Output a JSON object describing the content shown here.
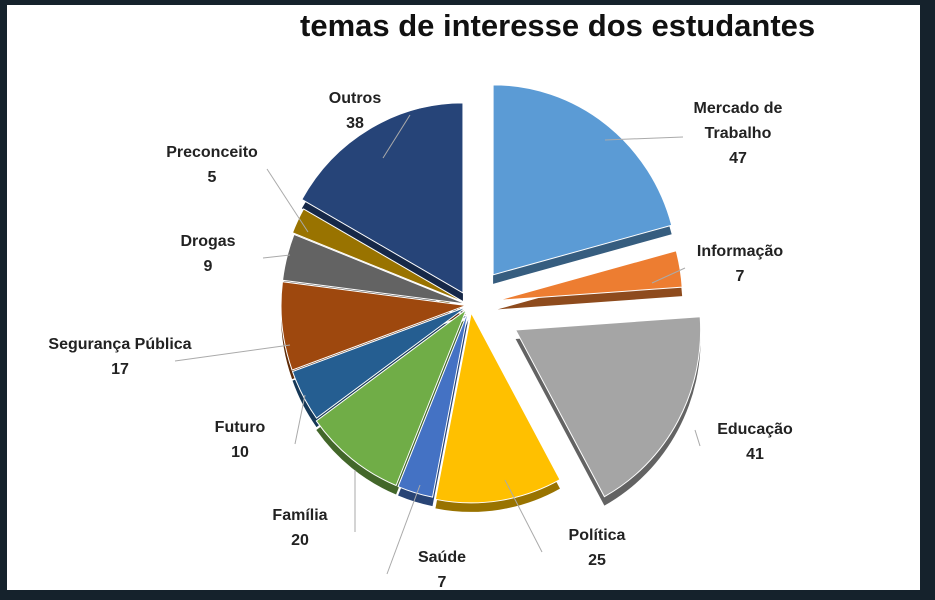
{
  "chart_data": {
    "type": "pie",
    "title": "temas de interesse dos estudantes",
    "start": "top, clockwise",
    "style": "3D exploded",
    "slices": [
      {
        "label": "Mercado de Trabalho",
        "lines": [
          "Mercado de",
          "Trabalho"
        ],
        "value": 47,
        "color": "#5b9bd5"
      },
      {
        "label": "Informação",
        "lines": [
          "Informação"
        ],
        "value": 7,
        "color": "#ed7d31"
      },
      {
        "label": "Educação",
        "lines": [
          "Educação"
        ],
        "value": 41,
        "color": "#a5a5a5"
      },
      {
        "label": "Política",
        "lines": [
          "Política"
        ],
        "value": 25,
        "color": "#ffc000"
      },
      {
        "label": "Saúde",
        "lines": [
          "Saúde"
        ],
        "value": 7,
        "color": "#4472c4"
      },
      {
        "label": "Família",
        "lines": [
          "Família"
        ],
        "value": 20,
        "color": "#70ad47"
      },
      {
        "label": "Futuro",
        "lines": [
          "Futuro"
        ],
        "value": 10,
        "color": "#255e91"
      },
      {
        "label": "Segurança Pública",
        "lines": [
          "Segurança Pública"
        ],
        "value": 17,
        "color": "#9e480e"
      },
      {
        "label": "Drogas",
        "lines": [
          "Drogas"
        ],
        "value": 9,
        "color": "#636363"
      },
      {
        "label": "Preconceito",
        "lines": [
          "Preconceito"
        ],
        "value": 5,
        "color": "#997300"
      },
      {
        "label": "Outros",
        "lines": [
          "Outros"
        ],
        "value": 38,
        "color": "#264478"
      }
    ]
  }
}
